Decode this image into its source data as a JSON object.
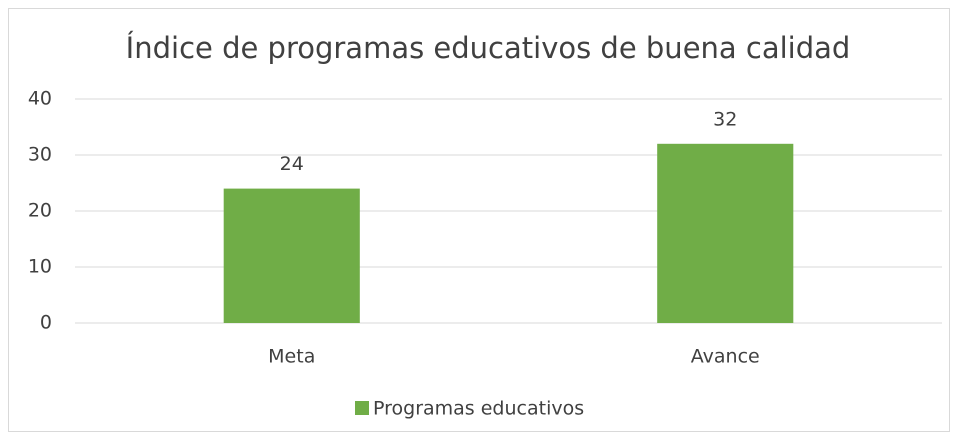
{
  "chart_data": {
    "type": "bar",
    "title": "Índice de programas educativos de buena calidad",
    "categories": [
      "Meta",
      "Avance"
    ],
    "series": [
      {
        "name": "Programas educativos",
        "color": "#70ad47",
        "values": [
          24,
          32
        ]
      }
    ],
    "ylim": [
      0,
      40
    ],
    "yticks": [
      0,
      10,
      20,
      30,
      40
    ],
    "grid": true,
    "legend": "bottom"
  }
}
